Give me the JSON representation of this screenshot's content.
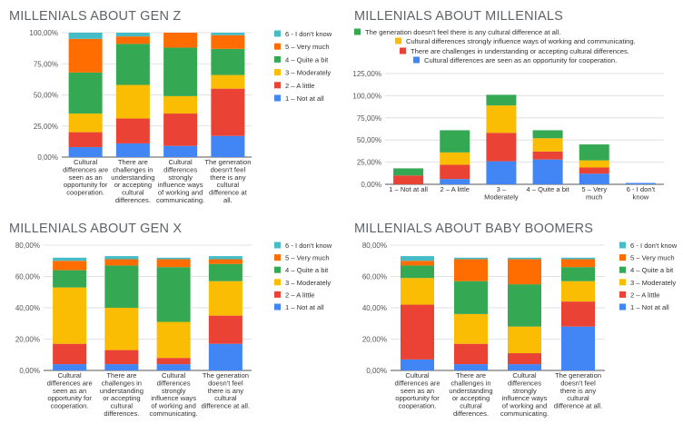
{
  "colors": {
    "1": "#4285f4",
    "2": "#ea4335",
    "3": "#fbbc04",
    "4": "#34a853",
    "5": "#ff6d01",
    "6": "#46bdc6"
  },
  "chart_data": [
    {
      "id": "genz",
      "type": "bar",
      "stacked": true,
      "title": "MILLENIALS ABOUT GEN Z",
      "yticks": [
        "0,00%",
        "25,00%",
        "50,00%",
        "75,00%",
        "100,00%"
      ],
      "ylim": [
        0,
        100
      ],
      "grid": true,
      "legend_position": "right",
      "categories": [
        [
          "Cultural",
          "differences are",
          "seen as an",
          "opportunity for",
          "cooperation."
        ],
        [
          "There are",
          "challenges in",
          "understanding",
          "or accepting",
          "cultural",
          "differences."
        ],
        [
          "Cultural",
          "differences",
          "strongly",
          "influence ways",
          "of working and",
          "communicating."
        ],
        [
          "The generation",
          "doesn't feel",
          "there is any",
          "cultural",
          "difference at",
          "all."
        ]
      ],
      "series": [
        {
          "name": "1 – Not at all",
          "key": "1",
          "values": [
            8,
            11,
            9,
            17
          ]
        },
        {
          "name": "2 – A little",
          "key": "2",
          "values": [
            12,
            20,
            26,
            38
          ]
        },
        {
          "name": "3 – Moderately",
          "key": "3",
          "values": [
            15,
            27,
            14,
            11
          ]
        },
        {
          "name": "4 – Quite a bit",
          "key": "4",
          "values": [
            33,
            33,
            39,
            21
          ]
        },
        {
          "name": "5 – Very much",
          "key": "5",
          "values": [
            27,
            6,
            12,
            11
          ]
        },
        {
          "name": "6 - I don't know",
          "key": "6",
          "values": [
            5,
            3,
            0,
            2
          ]
        }
      ]
    },
    {
      "id": "mill",
      "type": "bar",
      "stacked": true,
      "title": "MILLENIALS ABOUT MILLENIALS",
      "yticks": [
        "0,00%",
        "25,00%",
        "50,00%",
        "75,00%",
        "100,00%",
        "125,00%"
      ],
      "ylim": [
        0,
        125
      ],
      "grid": true,
      "legend_position": "top",
      "categories": [
        [
          "1 – Not at all"
        ],
        [
          "2 – A little"
        ],
        [
          "3 –",
          "Moderately"
        ],
        [
          "4 – Quite a bit"
        ],
        [
          "5 – Very",
          "much"
        ],
        [
          "6 - I don't",
          "know"
        ]
      ],
      "series": [
        {
          "name": "Cultural differences are seen as an opportunity for cooperation.",
          "key": "1",
          "values": [
            0,
            6,
            26,
            28,
            12,
            1.5
          ]
        },
        {
          "name": "There are challenges in understanding or accepting cultural differences.",
          "key": "2",
          "values": [
            10,
            16,
            32,
            9,
            7,
            0
          ]
        },
        {
          "name": "Cultural differences strongly influence ways of working and communicating.",
          "key": "3",
          "values": [
            0,
            14,
            31,
            15,
            8,
            0
          ]
        },
        {
          "name": "The generation doesn't feel there is any cultural difference at all.",
          "key": "4",
          "values": [
            8,
            25,
            12,
            9,
            18,
            0
          ]
        }
      ],
      "legend_order": [
        3,
        2,
        1,
        0
      ]
    },
    {
      "id": "genx",
      "type": "bar",
      "stacked": true,
      "title": "MILLENIALS ABOUT GEN X",
      "yticks": [
        "0,00%",
        "20,00%",
        "40,00%",
        "60,00%",
        "80,00%"
      ],
      "ylim": [
        0,
        80
      ],
      "grid": true,
      "legend_position": "right",
      "categories": [
        [
          "Cultural",
          "differences are",
          "seen as an",
          "opportunity for",
          "cooperation."
        ],
        [
          "There are",
          "challenges in",
          "understanding",
          "or accepting",
          "cultural",
          "differences."
        ],
        [
          "Cultural",
          "differences",
          "strongly",
          "influence ways",
          "of working and",
          "communicating."
        ],
        [
          "The generation",
          "doesn't feel",
          "there is any",
          "cultural",
          "difference at all."
        ]
      ],
      "series": [
        {
          "name": "1 – Not at all",
          "key": "1",
          "values": [
            4,
            4,
            4,
            17
          ]
        },
        {
          "name": "2 – A little",
          "key": "2",
          "values": [
            13,
            9,
            4,
            18
          ]
        },
        {
          "name": "3 – Moderately",
          "key": "3",
          "values": [
            36,
            27,
            23,
            22
          ]
        },
        {
          "name": "4 – Quite a bit",
          "key": "4",
          "values": [
            11,
            27,
            35,
            11
          ]
        },
        {
          "name": "5 – Very much",
          "key": "5",
          "values": [
            6,
            4,
            5,
            3
          ]
        },
        {
          "name": "6 - I don't know",
          "key": "6",
          "values": [
            2,
            2,
            1,
            2
          ]
        }
      ]
    },
    {
      "id": "boom",
      "type": "bar",
      "stacked": true,
      "title": "MILLENIALS ABOUT BABY BOOMERS",
      "yticks": [
        "0,00%",
        "20,00%",
        "40,00%",
        "60,00%",
        "80,00%"
      ],
      "ylim": [
        0,
        80
      ],
      "grid": true,
      "legend_position": "right",
      "categories": [
        [
          "Cultural",
          "differences are",
          "seen as an",
          "opportunity for",
          "cooperation."
        ],
        [
          "There are",
          "challenges in",
          "understanding",
          "or accepting",
          "cultural",
          "differences."
        ],
        [
          "Cultural",
          "differences",
          "strongly",
          "influence ways",
          "of working and",
          "communicating."
        ],
        [
          "The generation",
          "doesn't feel",
          "there is any",
          "cultural",
          "difference at all."
        ]
      ],
      "series": [
        {
          "name": "1 – Not at all",
          "key": "1",
          "values": [
            7,
            4,
            4,
            28
          ]
        },
        {
          "name": "2 – A little",
          "key": "2",
          "values": [
            35,
            13,
            7,
            16
          ]
        },
        {
          "name": "3 – Moderately",
          "key": "3",
          "values": [
            17,
            19,
            17,
            13
          ]
        },
        {
          "name": "4 – Quite a bit",
          "key": "4",
          "values": [
            8,
            21,
            27,
            9
          ]
        },
        {
          "name": "5 – Very much",
          "key": "5",
          "values": [
            3,
            14,
            16,
            5
          ]
        },
        {
          "name": "6 - I don't know",
          "key": "6",
          "values": [
            3,
            1,
            1,
            1
          ]
        }
      ]
    }
  ]
}
